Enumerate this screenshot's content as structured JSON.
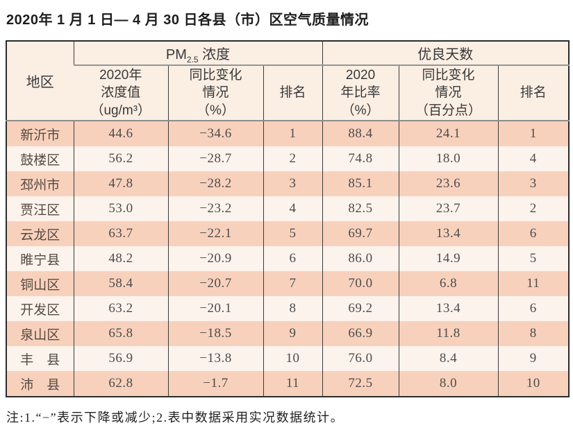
{
  "title": "2020年 1 月 1 日— 4 月 30 日各县（市）区空气质量情况",
  "table": {
    "region_header": "地区",
    "pm25_group": {
      "prefix": "PM",
      "sub": "2.5",
      "suffix": " 浓度"
    },
    "good_days_header": "优良天数",
    "subheaders": [
      {
        "lines": [
          "2020年",
          "浓度值",
          "（ug/m³）"
        ]
      },
      {
        "lines": [
          "同比变化",
          "情况",
          "（%）"
        ]
      },
      {
        "lines": [
          "排名"
        ]
      },
      {
        "lines": [
          "2020",
          "年比率",
          "（%）"
        ]
      },
      {
        "lines": [
          "同比变化",
          "情况",
          "（百分点）"
        ]
      },
      {
        "lines": [
          "排名"
        ]
      }
    ],
    "rows": [
      [
        "新沂市",
        "44.6",
        "−34.6",
        "1",
        "88.4",
        "24.1",
        "1"
      ],
      [
        "鼓楼区",
        "56.2",
        "−28.7",
        "2",
        "74.8",
        "18.0",
        "4"
      ],
      [
        "邳州市",
        "47.8",
        "−28.2",
        "3",
        "85.1",
        "23.6",
        "3"
      ],
      [
        "贾汪区",
        "53.0",
        "−23.2",
        "4",
        "82.5",
        "23.7",
        "2"
      ],
      [
        "云龙区",
        "63.7",
        "−22.1",
        "5",
        "69.7",
        "13.4",
        "6"
      ],
      [
        "睢宁县",
        "48.2",
        "−20.9",
        "6",
        "86.0",
        "14.9",
        "5"
      ],
      [
        "铜山区",
        "58.4",
        "−20.7",
        "7",
        "70.0",
        "6.8",
        "11"
      ],
      [
        "开发区",
        "63.2",
        "−20.1",
        "8",
        "69.2",
        "13.4",
        "6"
      ],
      [
        "泉山区",
        "65.8",
        "−18.5",
        "9",
        "66.9",
        "11.8",
        "8"
      ],
      [
        "丰　县",
        "56.9",
        "−13.8",
        "10",
        "76.0",
        "8.4",
        "9"
      ],
      [
        "沛　县",
        "62.8",
        "−1.7",
        "11",
        "72.5",
        "8.0",
        "10"
      ]
    ]
  },
  "note": "注:1.“−”表示下降或减少;2.表中数据采用实况数据统计。",
  "colors": {
    "header_bg": "#fbeee3",
    "row_odd_bg": "#f8d1bd",
    "row_even_bg": "#fdf3ed",
    "border_dark": "#2b2b2b",
    "border_gray": "#8c8c8c"
  }
}
